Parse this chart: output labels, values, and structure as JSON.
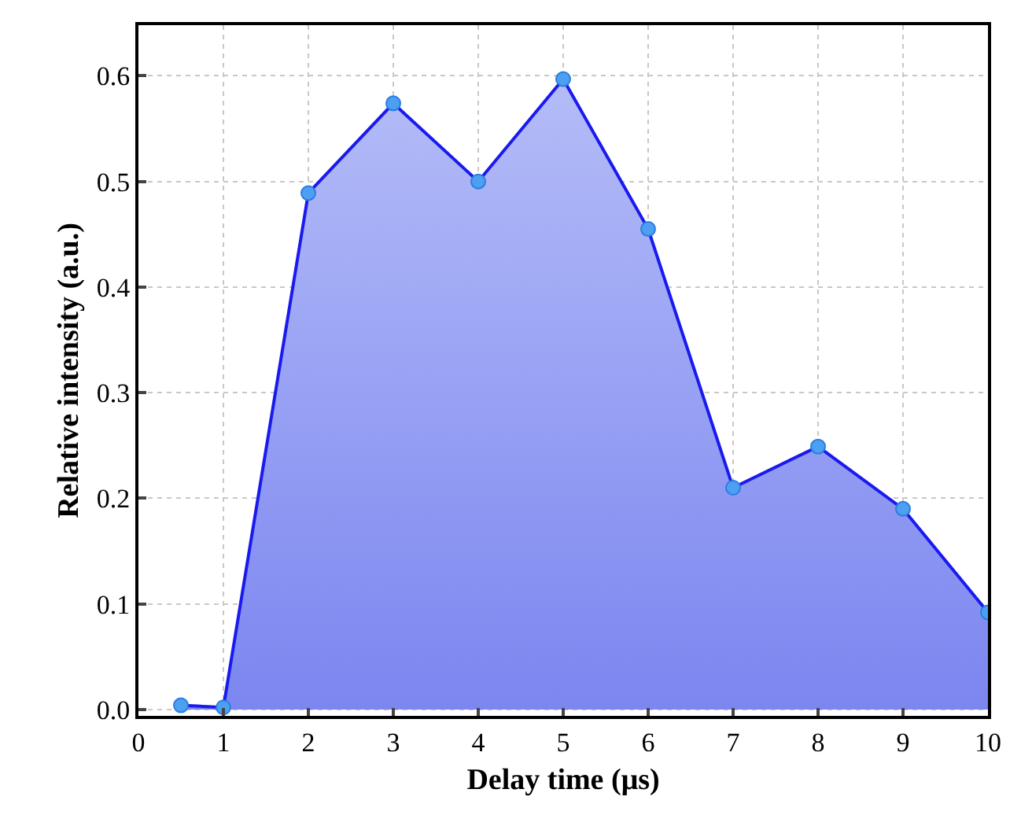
{
  "chart_data": {
    "type": "area",
    "xlabel": "Delay time (μs)",
    "ylabel": "Relative intensity (a.u.)",
    "x": [
      0.5,
      1,
      2,
      3,
      4,
      5,
      6,
      7,
      8,
      9,
      10
    ],
    "series": [
      {
        "color": "#1a1aee",
        "values": [
          0.004,
          0.002,
          0.489,
          0.574,
          0.5,
          0.597,
          0.455,
          0.21,
          0.249,
          0.19,
          0.092
        ]
      }
    ],
    "xlim": [
      0,
      10
    ],
    "xticks": [
      0,
      1,
      2,
      3,
      4,
      5,
      6,
      7,
      8,
      9,
      10
    ],
    "ylim": [
      -0.006,
      0.648
    ],
    "yticks": [
      {
        "value": 0,
        "label": "0.0"
      },
      0.1,
      0.2,
      0.3,
      0.4,
      0.5,
      0.6
    ],
    "grid": true,
    "marker": "circle",
    "line_style": "solid",
    "legend": false
  }
}
